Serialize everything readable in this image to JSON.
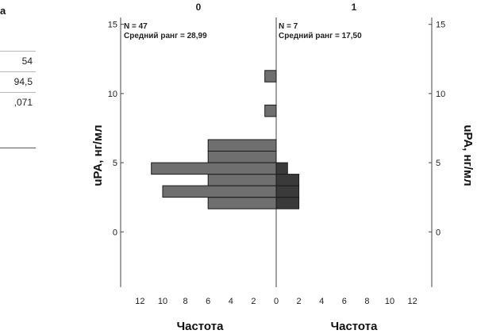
{
  "stats_table": {
    "title": "а",
    "values": [
      "54",
      "94,5",
      ",071"
    ]
  },
  "chart_data": {
    "type": "bar",
    "orientation": "horizontal-population-pyramid",
    "ylabel_left": "uPA, нг/мл",
    "ylabel_right": "uPA, нг/мл",
    "xlabel_left": "Частота",
    "xlabel_right": "Частота",
    "ylim": [
      -4,
      15.5
    ],
    "y_ticks": [
      0,
      5,
      10,
      15
    ],
    "xlim": [
      0,
      13
    ],
    "left_x_ticks": [
      12,
      10,
      8,
      6,
      4,
      2,
      0
    ],
    "right_x_ticks": [
      0,
      2,
      4,
      6,
      8,
      10,
      12
    ],
    "bin_width": 0.833,
    "panels": [
      {
        "name": "0",
        "annotation_n": "N = 47",
        "annotation_rank": "Средний ранг = 28,99",
        "color": "#6f6f6f",
        "bins": [
          {
            "y": 2.08,
            "count": 6
          },
          {
            "y": 2.92,
            "count": 10
          },
          {
            "y": 3.75,
            "count": 6
          },
          {
            "y": 4.58,
            "count": 11
          },
          {
            "y": 5.42,
            "count": 6
          },
          {
            "y": 6.25,
            "count": 6
          },
          {
            "y": 8.75,
            "count": 1
          },
          {
            "y": 11.25,
            "count": 1
          }
        ]
      },
      {
        "name": "1",
        "annotation_n": "N = 7",
        "annotation_rank": "Средний ранг = 17,50",
        "color": "#3a3a3a",
        "bins": [
          {
            "y": 2.08,
            "count": 2
          },
          {
            "y": 2.92,
            "count": 2
          },
          {
            "y": 3.75,
            "count": 2
          },
          {
            "y": 4.58,
            "count": 1
          }
        ]
      }
    ]
  }
}
